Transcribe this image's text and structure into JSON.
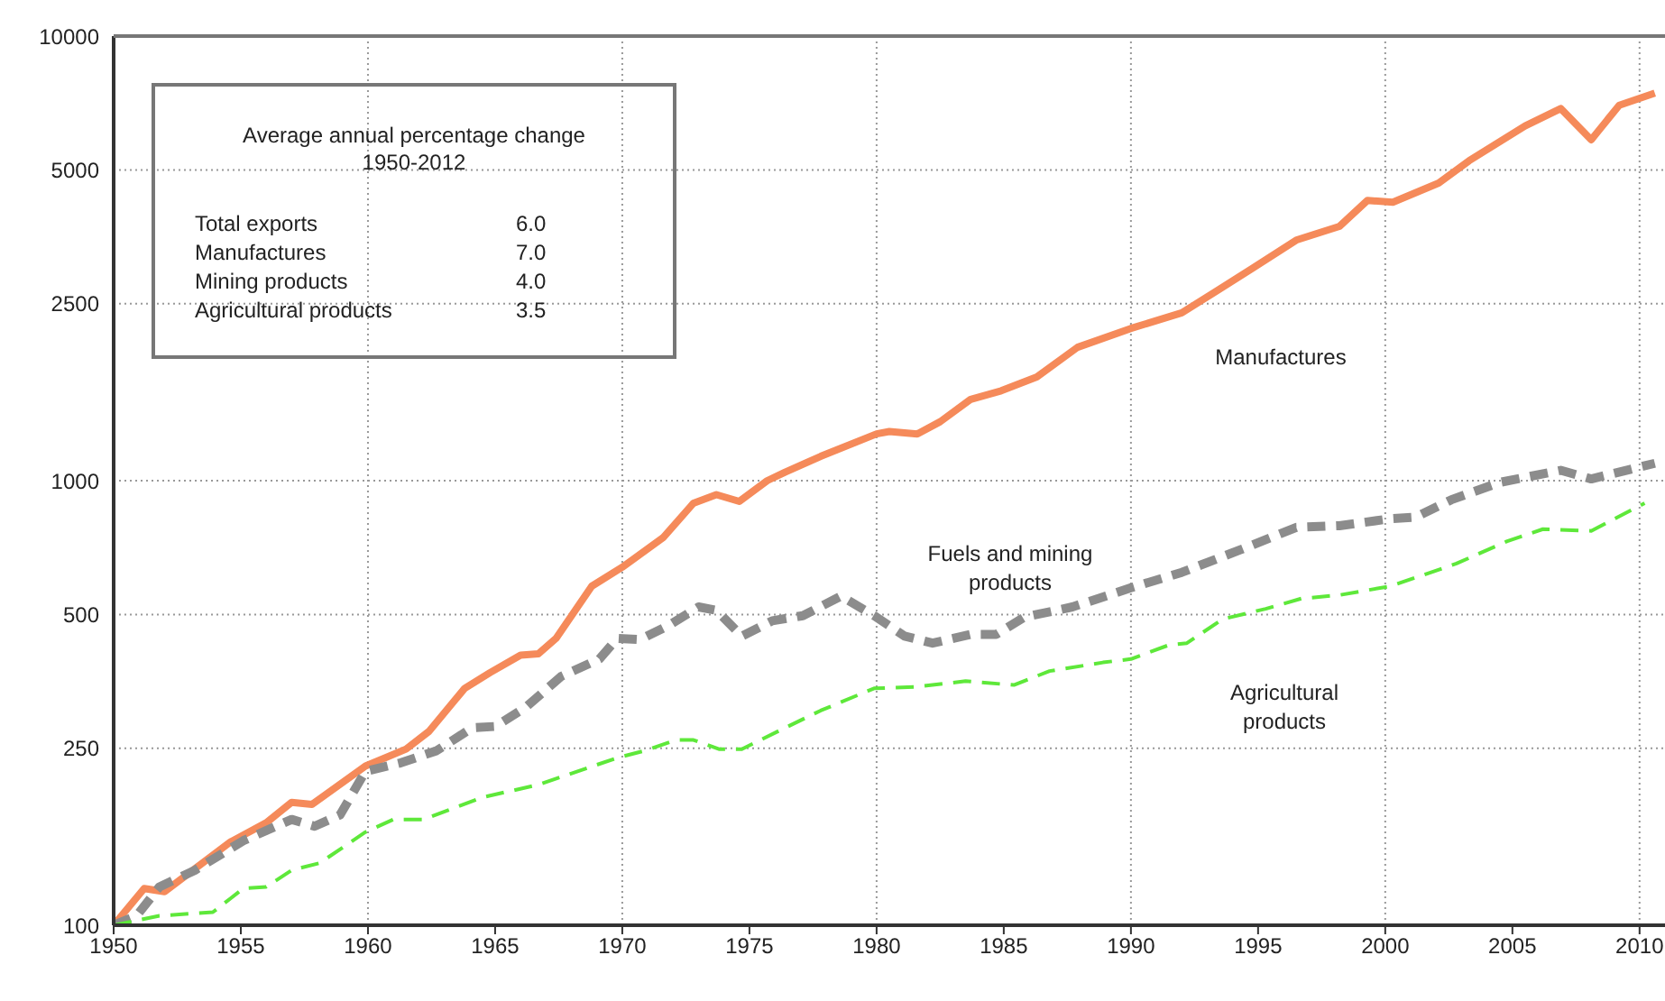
{
  "chart_data": {
    "type": "line",
    "log": "y",
    "grid": true,
    "legend": false,
    "xlim": [
      1950,
      2011
    ],
    "xticks": [
      1950,
      1955,
      1960,
      1965,
      1970,
      1975,
      1980,
      1985,
      1990,
      1995,
      2000,
      2005,
      2010
    ],
    "ylim": [
      100,
      10000
    ],
    "yticks": [
      100,
      250,
      500,
      1000,
      2500,
      5000,
      10000
    ],
    "annotations": [
      "Average annual percentage change",
      "1950-2012",
      "Total exports",
      "6.0",
      "Manufactures",
      "7.0",
      "Mining products",
      "4.0",
      "Agricultural products",
      "3.5"
    ],
    "series": [
      {
        "name": "Manufactures",
        "color": "#f58a5a",
        "line_style": "solid",
        "x": [
          1950,
          1951.2,
          1952,
          1954.6,
          1956,
          1957,
          1957.8,
          1959.9,
          1961.5,
          1962.4,
          1963.8,
          1964.8,
          1966,
          1966.7,
          1967.4,
          1968.8,
          1970,
          1971.6,
          1972.8,
          1973.7,
          1974.6,
          1975.7,
          1976.4,
          1977.8,
          1980,
          1980.5,
          1981.6,
          1982.5,
          1983.7,
          1984.9,
          1986.3,
          1987.9,
          1990,
          1992,
          1993.4,
          1994.8,
          1996.5,
          1998.2,
          1999.3,
          2000.3,
          2002.1,
          2003.3,
          2005.5,
          2006.9,
          2008.1,
          2009.2,
          2010.6
        ],
        "values": [
          100,
          121,
          119,
          154,
          170,
          189,
          187,
          228,
          249,
          273,
          341,
          370,
          405,
          408,
          442,
          579,
          639,
          744,
          890,
          930,
          898,
          1000,
          1045,
          1134,
          1274,
          1290,
          1274,
          1357,
          1524,
          1593,
          1711,
          1995,
          2200,
          2385,
          2679,
          3010,
          3475,
          3733,
          4270,
          4230,
          4670,
          5245,
          6280,
          6870,
          5845,
          6990,
          7440
        ]
      },
      {
        "name": "Fuels and mining products",
        "color": "#8c8c8c",
        "line_style": "dashed",
        "x": [
          1950,
          1950.9,
          1951.8,
          1953.2,
          1955.1,
          1957,
          1957.9,
          1958.9,
          1959.9,
          1961.3,
          1962.7,
          1964.1,
          1965,
          1966.2,
          1967.6,
          1969.1,
          1969.8,
          1970.7,
          1971.9,
          1973,
          1973.7,
          1974.7,
          1975.9,
          1977.1,
          1978.6,
          1979.9,
          1981.1,
          1982.2,
          1983.7,
          1984.7,
          1985.8,
          1987.7,
          1990,
          1992,
          1994.3,
          1996.5,
          1998.2,
          2000.2,
          2001.2,
          2002.6,
          2004.5,
          2006.9,
          2008.1,
          2010.6
        ],
        "values": [
          100,
          105,
          122,
          133,
          155,
          173,
          167,
          177,
          222,
          232,
          247,
          278,
          280,
          309,
          363,
          397,
          442,
          439,
          475,
          520,
          511,
          447,
          484,
          497,
          550,
          497,
          447,
          431,
          451,
          451,
          493,
          520,
          574,
          622,
          699,
          785,
          792,
          821,
          828,
          906,
          991,
          1055,
          1009,
          1094
        ]
      },
      {
        "name": "Agricultural products",
        "color": "#5ee83a",
        "line_style": "dashed",
        "x": [
          1950,
          1951.8,
          1953.9,
          1955.1,
          1956,
          1957,
          1958.1,
          1959.9,
          1961,
          1962.2,
          1964.5,
          1966.7,
          1969.8,
          1970.9,
          1972.1,
          1972.8,
          1973.8,
          1974.7,
          1976.4,
          1977.8,
          1979.9,
          1981.6,
          1983.5,
          1985.4,
          1986.8,
          1988.9,
          1990,
          1991.5,
          1992.2,
          1993.6,
          1995.3,
          1996.7,
          1998.2,
          2000.2,
          2001.4,
          2002.8,
          2004.8,
          2006.2,
          2008.1,
          2010.2
        ],
        "values": [
          100,
          105,
          107,
          121,
          122,
          133,
          138,
          162,
          173,
          173,
          194,
          207,
          238,
          247,
          261,
          261,
          249,
          249,
          278,
          304,
          341,
          344,
          354,
          347,
          373,
          390,
          397,
          427,
          431,
          488,
          515,
          543,
          553,
          579,
          611,
          651,
          731,
          778,
          771,
          890
        ]
      }
    ]
  }
}
